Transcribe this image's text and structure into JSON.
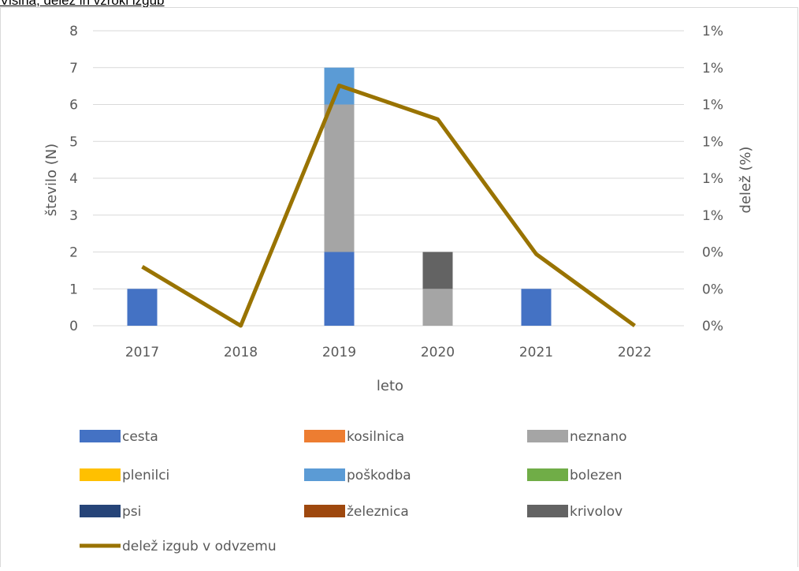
{
  "page_title": "Višina, delež in vzroki izgub",
  "chart_data": {
    "type": "bar",
    "stacked": true,
    "categories": [
      "2017",
      "2018",
      "2019",
      "2020",
      "2021",
      "2022"
    ],
    "xlabel": "leto",
    "ylabel": "število (N)",
    "y2label": "delež (%)",
    "ylim": [
      0,
      8
    ],
    "yticks": [
      "0",
      "1",
      "2",
      "3",
      "4",
      "5",
      "6",
      "7",
      "8"
    ],
    "y2ticks": [
      "0%",
      "0%",
      "0%",
      "1%",
      "1%",
      "1%",
      "1%",
      "1%",
      "1%"
    ],
    "grid": true,
    "legend_position": "bottom",
    "series": [
      {
        "name": "cesta",
        "type": "bar",
        "color": "#4472C4",
        "values": [
          1,
          0,
          2,
          0,
          1,
          0
        ]
      },
      {
        "name": "kosilnica",
        "type": "bar",
        "color": "#ED7D31",
        "values": [
          0,
          0,
          0,
          0,
          0,
          0
        ]
      },
      {
        "name": "neznano",
        "type": "bar",
        "color": "#A5A5A5",
        "values": [
          0,
          0,
          4,
          1,
          0,
          0
        ]
      },
      {
        "name": "plenilci",
        "type": "bar",
        "color": "#FFC000",
        "values": [
          0,
          0,
          0,
          0,
          0,
          0
        ]
      },
      {
        "name": "poškodba",
        "type": "bar",
        "color": "#5B9BD5",
        "values": [
          0,
          0,
          1,
          0,
          0,
          0
        ]
      },
      {
        "name": "bolezen",
        "type": "bar",
        "color": "#70AD47",
        "values": [
          0,
          0,
          0,
          0,
          0,
          0
        ]
      },
      {
        "name": "psi",
        "type": "bar",
        "color": "#264478",
        "values": [
          0,
          0,
          0,
          0,
          0,
          0
        ]
      },
      {
        "name": "železnica",
        "type": "bar",
        "color": "#9E480E",
        "values": [
          0,
          0,
          0,
          0,
          0,
          0
        ]
      },
      {
        "name": "krivolov",
        "type": "bar",
        "color": "#636363",
        "values": [
          0,
          0,
          0,
          1,
          0,
          0
        ]
      },
      {
        "name": "delež izgub v odvzemu",
        "type": "line",
        "axis": "secondary",
        "color": "#997300",
        "values": [
          0.0028,
          0,
          0.0114,
          0.0098,
          0.0034,
          0
        ]
      }
    ],
    "y2lim": [
      0,
      0.014
    ]
  }
}
